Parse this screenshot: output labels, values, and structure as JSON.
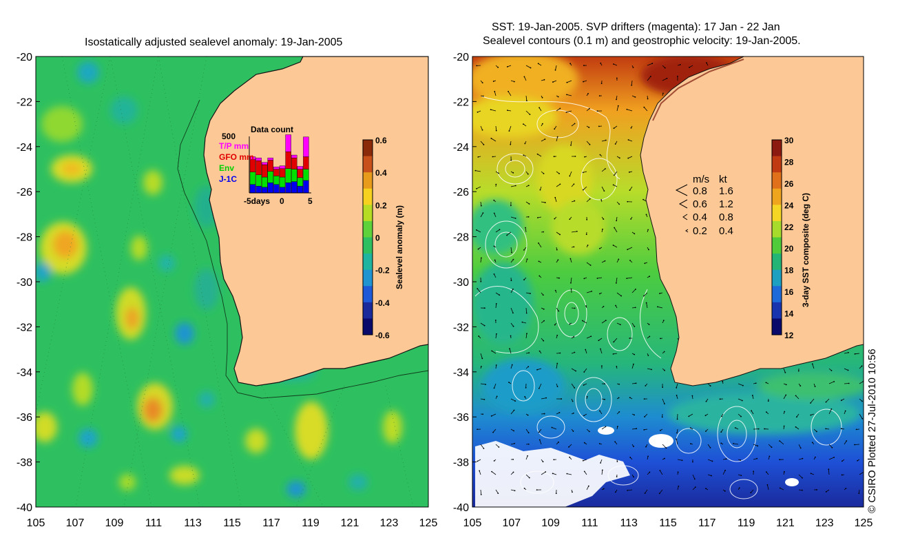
{
  "left_panel": {
    "title": "Isostatically adjusted sealevel anomaly: 19-Jan-2005",
    "colorbar": {
      "label": "Sealevel anomaly (m)",
      "ticks": [
        "0.6",
        "0.4",
        "0.2",
        "0",
        "-0.2",
        "-0.4",
        "-0.6"
      ],
      "colors": [
        "#8b2a0a",
        "#c8501a",
        "#e89a1a",
        "#f6d21e",
        "#b6dc24",
        "#5ed23a",
        "#2ec060",
        "#1fb4a0",
        "#1f94d0",
        "#1e5ad8",
        "#1a2a9a",
        "#0a0a6a"
      ]
    },
    "inset": {
      "title": "Data count",
      "max_label": "500",
      "legend": [
        {
          "label": "T/P mm",
          "color": "#ff00ff"
        },
        {
          "label": "GFO mm",
          "color": "#e00000"
        },
        {
          "label": "Env",
          "color": "#00e000"
        },
        {
          "label": "J-1C",
          "color": "#0000ee"
        }
      ],
      "x_labels": [
        "-5days",
        "0",
        "5"
      ],
      "bars": [
        {
          "jc": 0.15,
          "env": 0.22,
          "gfo": 0.22,
          "tp": 0.05
        },
        {
          "jc": 0.12,
          "env": 0.2,
          "gfo": 0.25,
          "tp": 0.05
        },
        {
          "jc": 0.1,
          "env": 0.18,
          "gfo": 0.22,
          "tp": 0.04
        },
        {
          "jc": 0.18,
          "env": 0.2,
          "gfo": 0.2,
          "tp": 0.04
        },
        {
          "jc": 0.15,
          "env": 0.15,
          "gfo": 0.12,
          "tp": 0.04
        },
        {
          "jc": 0.1,
          "env": 0.18,
          "gfo": 0.15,
          "tp": 0.05
        },
        {
          "jc": 0.18,
          "env": 0.25,
          "gfo": 0.3,
          "tp": 0.3
        },
        {
          "jc": 0.2,
          "env": 0.22,
          "gfo": 0.2,
          "tp": 0.05
        },
        {
          "jc": 0.12,
          "env": 0.15,
          "gfo": 0.15,
          "tp": 0.05
        },
        {
          "jc": 0.22,
          "env": 0.2,
          "gfo": 0.22,
          "tp": 0.35
        }
      ]
    }
  },
  "right_panel": {
    "title_line1": "SST: 19-Jan-2005. SVP drifters (magenta): 17 Jan - 22 Jan",
    "title_line2": "Sealevel contours (0.1 m) and geostrophic velocity: 19-Jan-2005.",
    "colorbar": {
      "label": "3-day SST composite (deg C)",
      "ticks": [
        "30",
        "28",
        "26",
        "24",
        "22",
        "20",
        "18",
        "16",
        "14",
        "12"
      ],
      "colors": [
        "#8c1a10",
        "#c03a12",
        "#e0701a",
        "#f0a51e",
        "#f6d624",
        "#a8dc2c",
        "#50cc3a",
        "#24b476",
        "#1ea0c0",
        "#1e6ad8",
        "#1a34b0",
        "#0a0a6a"
      ]
    },
    "velocity_legend": {
      "header_ms": "m/s",
      "header_kt": "kt",
      "rows": [
        {
          "ms": "0.8",
          "kt": "1.6"
        },
        {
          "ms": "0.6",
          "kt": "1.2"
        },
        {
          "ms": "0.4",
          "kt": "0.8"
        },
        {
          "ms": "0.2",
          "kt": "0.4"
        }
      ]
    }
  },
  "axes": {
    "lat_labels": [
      "-20",
      "-22",
      "-24",
      "-26",
      "-28",
      "-30",
      "-32",
      "-34",
      "-36",
      "-38",
      "-40"
    ],
    "lon_labels": [
      "105",
      "107",
      "109",
      "111",
      "113",
      "115",
      "117",
      "119",
      "121",
      "123",
      "125"
    ]
  },
  "land_color": "#fcc896",
  "credit": "© CSIRO Plotted 27-Jul-2010 10:56"
}
